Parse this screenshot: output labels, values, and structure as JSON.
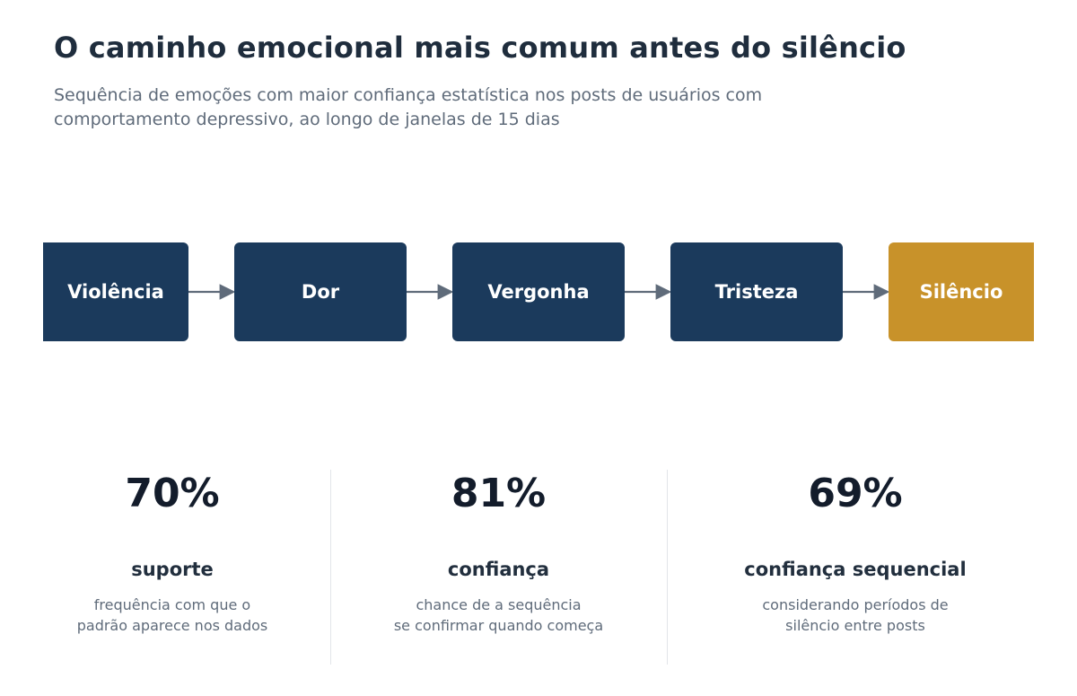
{
  "header": {
    "title": "O caminho emocional mais comum antes do silêncio",
    "subtitle": "Sequência de emoções com maior confiança estatística nos posts de usuários com comportamento depressivo, ao longo de janelas de 15 dias"
  },
  "flow": {
    "steps": [
      "Violência",
      "Dor",
      "Vergonha",
      "Tristeza",
      "Silêncio"
    ],
    "colors": {
      "step": "#1b3a5c",
      "final": "#c8922a",
      "arrow": "#5f6b7a"
    }
  },
  "metrics": [
    {
      "value": "70%",
      "label": "suporte",
      "desc_line1": "frequência com que o",
      "desc_line2": "padrão aparece nos dados"
    },
    {
      "value": "81%",
      "label": "confiança",
      "desc_line1": "chance de a sequência",
      "desc_line2": "se confirmar quando começa"
    },
    {
      "value": "69%",
      "label": "confiança sequencial",
      "desc_line1": "considerando períodos de",
      "desc_line2": "silêncio entre posts"
    }
  ]
}
